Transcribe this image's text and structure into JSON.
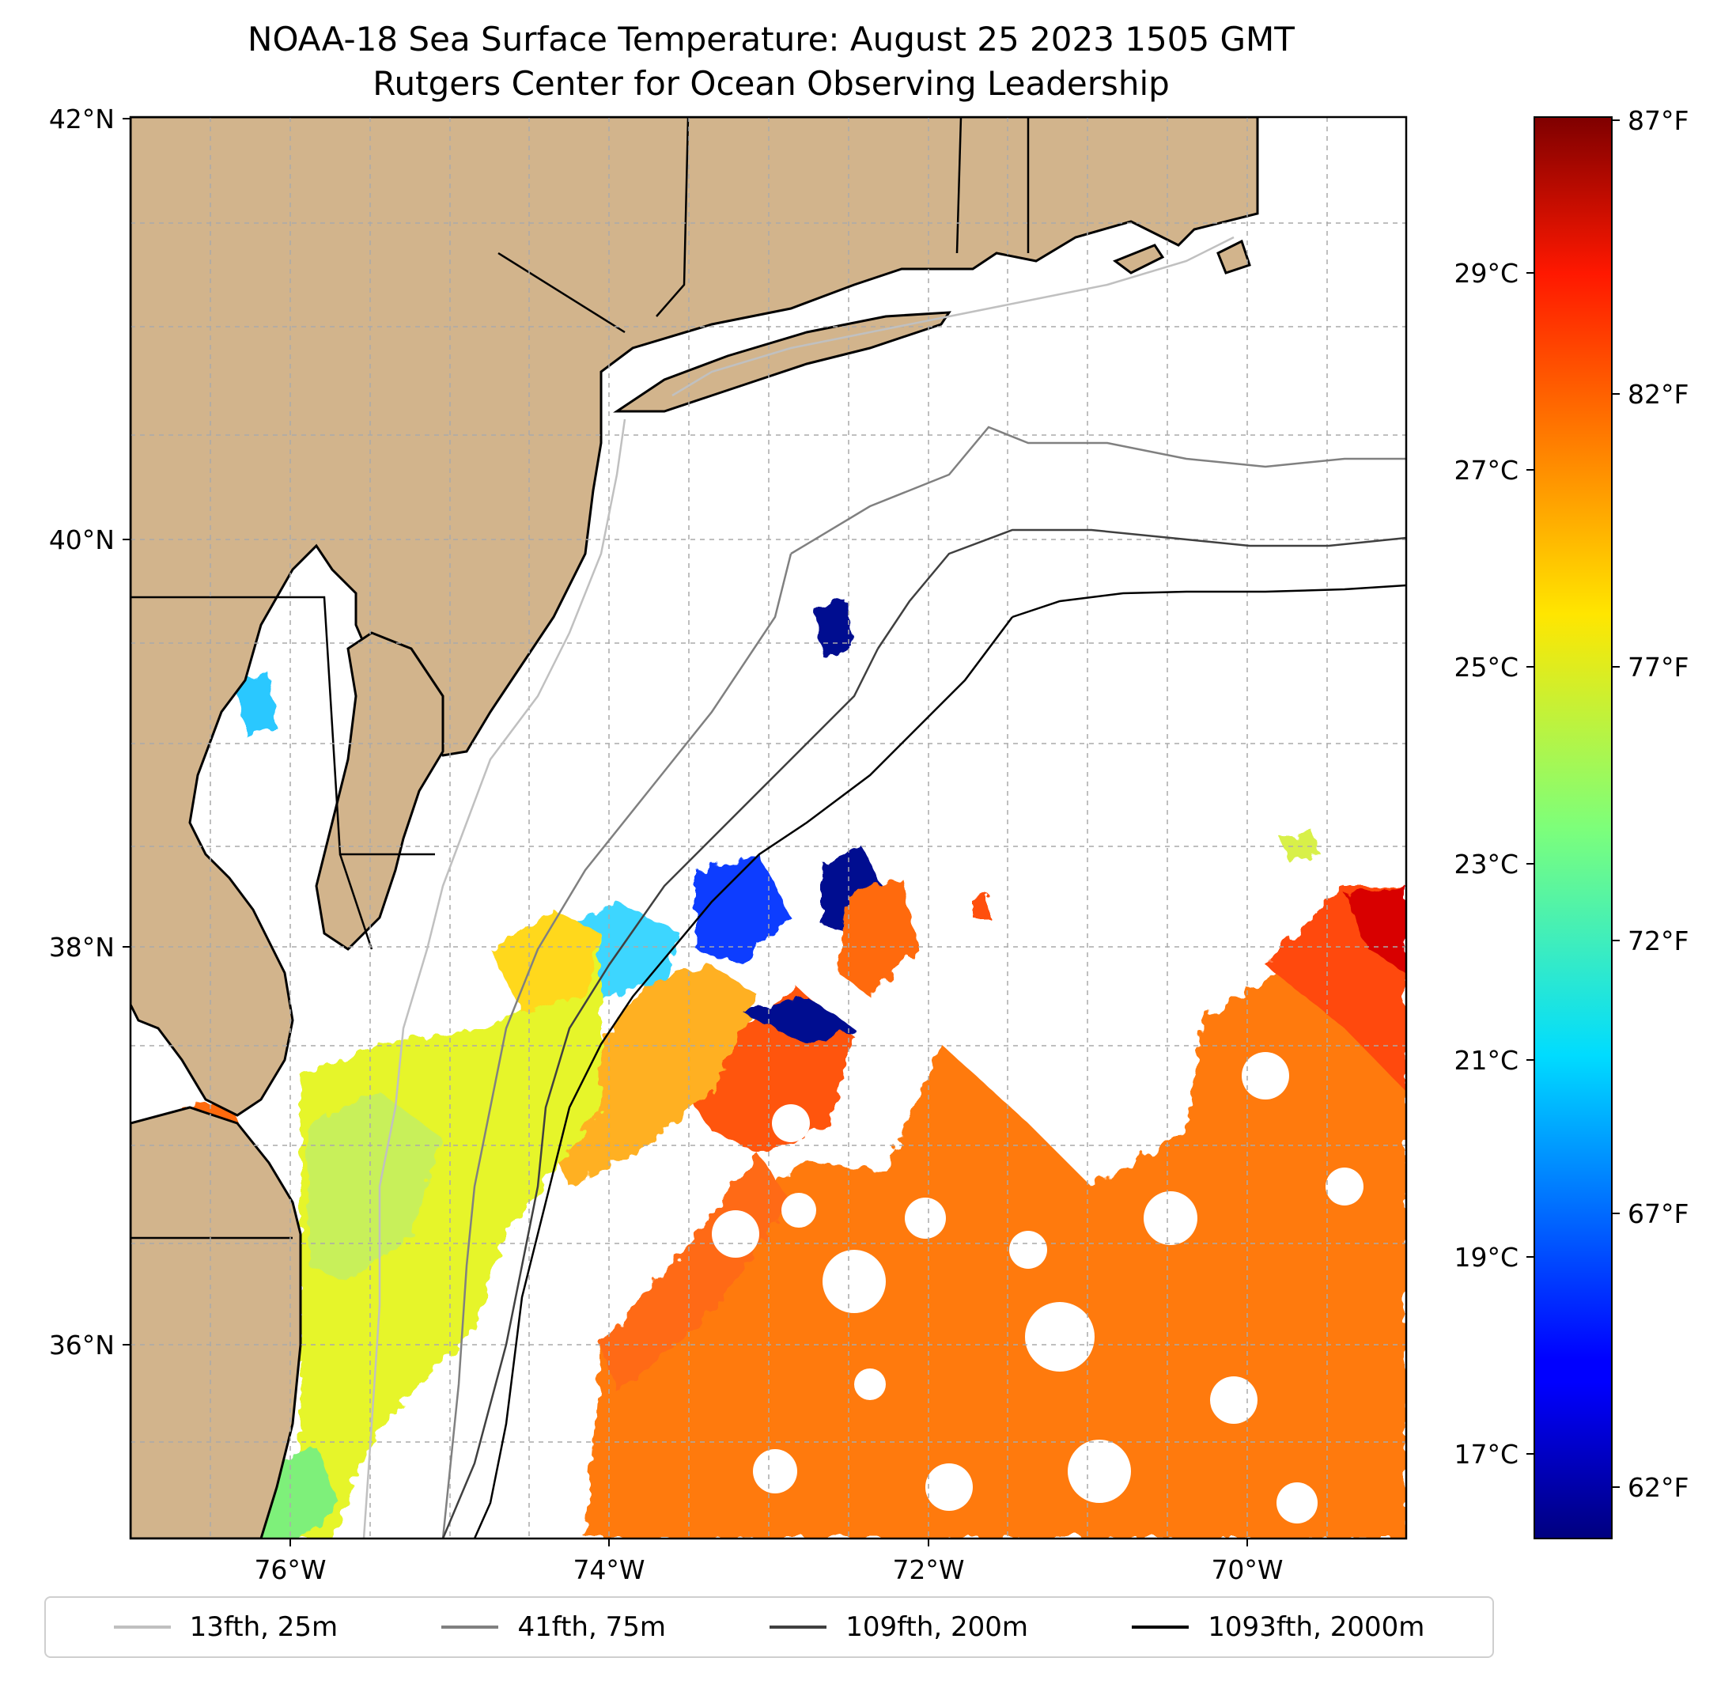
{
  "title": {
    "line1": "NOAA-18 Sea Surface Temperature: August 25 2023 1505 GMT",
    "line2": "Rutgers Center for Ocean Observing Leadership"
  },
  "map": {
    "lat_labels": [
      "42°N",
      "40°N",
      "38°N",
      "36°N"
    ],
    "lon_labels": [
      "76°W",
      "74°W",
      "72°W",
      "70°W"
    ],
    "land_color": "#d2b48c",
    "gridlines": true
  },
  "colorbar": {
    "celsius_labels": [
      "29°C",
      "27°C",
      "25°C",
      "23°C",
      "21°C",
      "19°C",
      "17°C"
    ],
    "fahrenheit_labels": [
      "87°F",
      "82°F",
      "77°F",
      "72°F",
      "67°F",
      "62°F"
    ],
    "colormap": "jet"
  },
  "legend": {
    "items": [
      {
        "label": "13fth, 25m",
        "color": "#c0c0c0"
      },
      {
        "label": "41fth, 75m",
        "color": "#808080"
      },
      {
        "label": "109fth, 200m",
        "color": "#404040"
      },
      {
        "label": "1093fth, 2000m",
        "color": "#000000"
      }
    ]
  }
}
